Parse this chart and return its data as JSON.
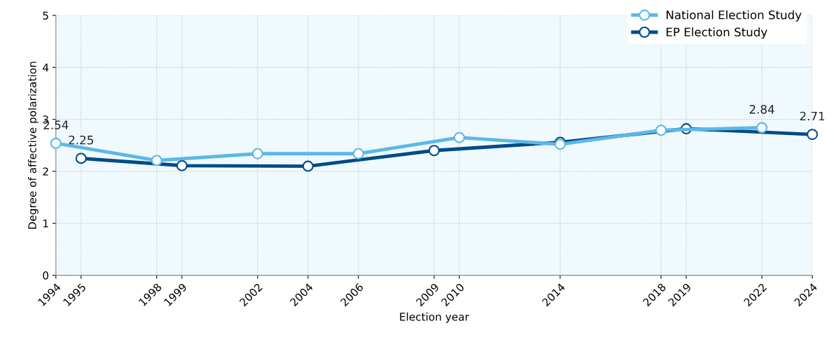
{
  "chart_data": {
    "type": "line",
    "xlabel": "Election year",
    "ylabel": "Degree of affective polarization",
    "xlim": [
      1994,
      2024
    ],
    "xticks": [
      1994,
      1995,
      1998,
      1999,
      2002,
      2004,
      2006,
      2009,
      2010,
      2014,
      2018,
      2019,
      2022,
      2024
    ],
    "ylim": [
      0,
      5
    ],
    "yticks": [
      0,
      1,
      2,
      3,
      4,
      5
    ],
    "grid": true,
    "legend": "top right",
    "marker": "circle",
    "line_style": "solid",
    "series": [
      {
        "name": "National Election Study",
        "color": "#5bb8e8",
        "x": [
          1994,
          1998,
          2002,
          2006,
          2010,
          2014,
          2018,
          2022
        ],
        "values": [
          2.54,
          2.21,
          2.34,
          2.34,
          2.65,
          2.52,
          2.79,
          2.84
        ],
        "value_labels": [
          "2.54",
          null,
          null,
          null,
          null,
          null,
          null,
          "2.84"
        ]
      },
      {
        "name": "EP Election Study",
        "color": "#004b87",
        "x": [
          1995,
          1999,
          2004,
          2009,
          2014,
          2019,
          2024
        ],
        "values": [
          2.25,
          2.11,
          2.1,
          2.4,
          2.56,
          2.82,
          2.71
        ],
        "value_labels": [
          "2.25",
          null,
          null,
          null,
          null,
          null,
          "2.71"
        ]
      }
    ]
  }
}
